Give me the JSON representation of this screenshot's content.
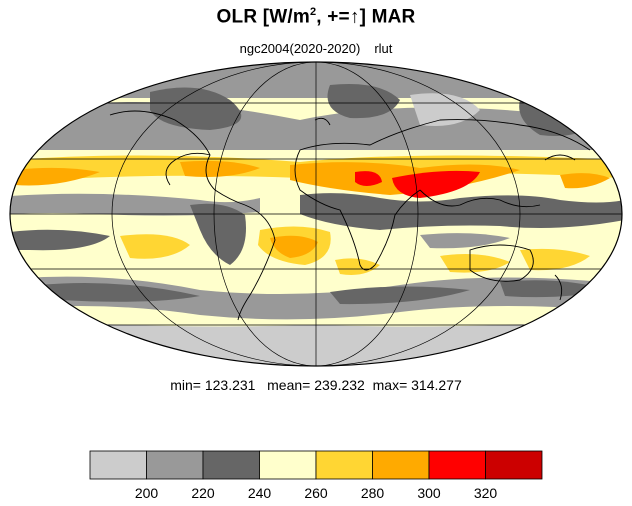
{
  "title": {
    "prefix": "OLR [W/m",
    "superscript": "2",
    "middle": ", +=",
    "arrow": "↑",
    "suffix": "] MAR"
  },
  "subtitle": {
    "case": "ngc2004(2020-2020)",
    "variable": "rlut"
  },
  "stats": {
    "min_label": "min=",
    "min": "123.231",
    "mean_label": "mean=",
    "mean": "239.232",
    "max_label": "max=",
    "max": "314.277"
  },
  "colorbar": {
    "levels": [
      200,
      220,
      240,
      260,
      280,
      300,
      320
    ],
    "colors": [
      "#cccccc",
      "#999999",
      "#666666",
      "#ffffcc",
      "#ffd633",
      "#ffaa00",
      "#ff0000",
      "#cc0000"
    ]
  },
  "map": {
    "projection": "mollweide",
    "ocean_fill": "#ffffcc",
    "coastline_color": "#000000"
  }
}
